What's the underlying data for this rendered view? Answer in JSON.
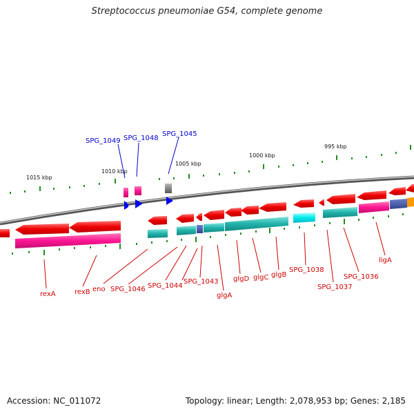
{
  "title": "Streptococcus pneumoniae G54, complete genome",
  "footer": {
    "accession": "Accession: NC_011072",
    "topology": "Topology: linear; Length: 2,078,953 bp; Genes: 2,185"
  },
  "scale_labels": [
    "1015 kbp",
    "1010 kbp",
    "1005 kbp",
    "1000 kbp",
    "995 kbp"
  ],
  "top_gene_labels": [
    "SPG_1049",
    "SPG_1048",
    "SPG_1045"
  ],
  "bottom_gene_labels": [
    "rexA",
    "rexB",
    "eno",
    "SPG_1046",
    "SPG_1044",
    "SPG_1043",
    "glgA",
    "glgD",
    "glgC",
    "glgB",
    "SPG_1038",
    "SPG_1037",
    "SPG_1036",
    "ligA"
  ],
  "colors": {
    "gene_forward": "#ff0000",
    "cog_magenta": "#ff1493",
    "cog_cyan": "#20b2aa",
    "top_label": "#0000cc",
    "bottom_label": "#cc0000",
    "tick": "#228b22"
  }
}
